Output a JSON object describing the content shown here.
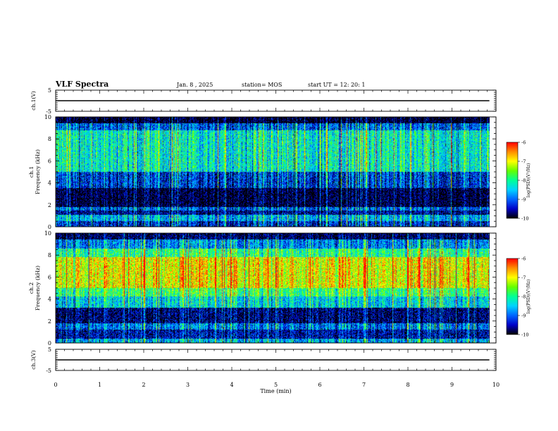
{
  "header": {
    "title": "VLF Spectra",
    "date": "Jan. 8 , 2025",
    "station": "station= MOS",
    "start": "start UT = 12: 20: 1"
  },
  "colors": {
    "background": "#ffffff",
    "axis": "#000000",
    "spectrogram_scale": [
      "#000000",
      "#0000c8",
      "#0064ff",
      "#00d2ff",
      "#00ff96",
      "#64ff00",
      "#ffff00",
      "#ff8c00",
      "#ff0000",
      "#ffffff"
    ]
  },
  "chart_data": [
    {
      "type": "line",
      "ylabel": "ch.1(V)",
      "ylim": [
        -5,
        5
      ],
      "yticks": [
        "5",
        "-5"
      ],
      "series": [
        {
          "x": [
            0,
            9.85
          ],
          "y": [
            0,
            0
          ]
        }
      ]
    },
    {
      "type": "heatmap",
      "ylabel": "ch.1\nFrequency (kHz)",
      "ylim": [
        0,
        10
      ],
      "yticks": [
        "0",
        "2",
        "4",
        "6",
        "8",
        "10"
      ],
      "xlim": [
        0,
        10
      ],
      "data_end_min": 9.85,
      "colorbar": {
        "label": "log(PSD)(V²/Hz)",
        "ticks": [
          "-6",
          "-7",
          "-8",
          "-9",
          "-10"
        ],
        "range": [
          -10,
          -6
        ]
      },
      "bands": [
        {
          "freq_khz": [
            0,
            0.5
          ],
          "level": -9.3
        },
        {
          "freq_khz": [
            0.5,
            1.1
          ],
          "level": -8.6
        },
        {
          "freq_khz": [
            1.1,
            1.5
          ],
          "level": -9.6
        },
        {
          "freq_khz": [
            1.5,
            1.8
          ],
          "level": -9.0
        },
        {
          "freq_khz": [
            1.8,
            3.5
          ],
          "level": -9.9
        },
        {
          "freq_khz": [
            3.5,
            5.0
          ],
          "level": -9.2
        },
        {
          "freq_khz": [
            5.0,
            8.8
          ],
          "level": -8.2
        },
        {
          "freq_khz": [
            8.8,
            9.4
          ],
          "level": -9.0
        },
        {
          "freq_khz": [
            9.4,
            10
          ],
          "level": -10.0
        }
      ]
    },
    {
      "type": "heatmap",
      "ylabel": "ch.2\nFrequency (kHz)",
      "ylim": [
        0,
        10
      ],
      "yticks": [
        "0",
        "2",
        "4",
        "6",
        "8",
        "10"
      ],
      "xlim": [
        0,
        10
      ],
      "data_end_min": 9.85,
      "colorbar": {
        "label": "log(PSD)(V²/Hz)",
        "ticks": [
          "-6",
          "-7",
          "-8",
          "-9",
          "-10"
        ],
        "range": [
          -10,
          -6
        ]
      },
      "bands": [
        {
          "freq_khz": [
            0,
            0.4
          ],
          "level": -8.6
        },
        {
          "freq_khz": [
            0.4,
            1.2
          ],
          "level": -9.5
        },
        {
          "freq_khz": [
            1.2,
            1.8
          ],
          "level": -8.9
        },
        {
          "freq_khz": [
            1.8,
            3.2
          ],
          "level": -9.7
        },
        {
          "freq_khz": [
            3.2,
            4.2
          ],
          "level": -8.4
        },
        {
          "freq_khz": [
            4.2,
            5.0
          ],
          "level": -7.8
        },
        {
          "freq_khz": [
            5.0,
            7.8
          ],
          "level": -7.0
        },
        {
          "freq_khz": [
            7.8,
            8.6
          ],
          "level": -7.9
        },
        {
          "freq_khz": [
            8.6,
            9.4
          ],
          "level": -8.8
        },
        {
          "freq_khz": [
            9.4,
            10
          ],
          "level": -9.8
        }
      ]
    },
    {
      "type": "line",
      "ylabel": "ch.3(V)",
      "ylim": [
        -5,
        5
      ],
      "yticks": [
        "5",
        "-5"
      ],
      "series": [
        {
          "x": [
            0,
            9.85
          ],
          "y": [
            0,
            0
          ]
        }
      ]
    }
  ],
  "xaxis": {
    "label": "Time (min)",
    "ticks": [
      "0",
      "1",
      "2",
      "3",
      "4",
      "5",
      "6",
      "7",
      "8",
      "9",
      "10"
    ],
    "xlim": [
      0,
      10
    ]
  }
}
